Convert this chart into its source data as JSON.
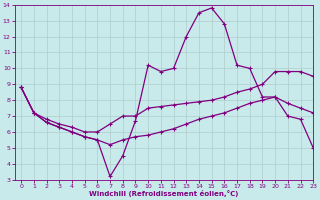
{
  "xlabel": "Windchill (Refroidissement éolien,°C)",
  "background_color": "#c8eaea",
  "line_color": "#800080",
  "grid_color": "#b0cccc",
  "xlim": [
    -0.5,
    23
  ],
  "ylim": [
    3,
    14
  ],
  "yticks": [
    3,
    4,
    5,
    6,
    7,
    8,
    9,
    10,
    11,
    12,
    13,
    14
  ],
  "xticks": [
    0,
    1,
    2,
    3,
    4,
    5,
    6,
    7,
    8,
    9,
    10,
    11,
    12,
    13,
    14,
    15,
    16,
    17,
    18,
    19,
    20,
    21,
    22,
    23
  ],
  "line1_x": [
    0,
    1,
    2,
    3,
    4,
    5,
    6,
    7,
    8,
    9,
    10,
    11,
    12,
    13,
    14,
    15,
    16,
    17,
    18,
    19,
    20,
    21,
    22,
    23
  ],
  "line1_y": [
    8.8,
    7.2,
    6.6,
    6.3,
    6.0,
    5.7,
    5.5,
    5.2,
    5.5,
    5.7,
    5.8,
    6.0,
    6.2,
    6.5,
    6.8,
    7.0,
    7.2,
    7.5,
    7.8,
    8.0,
    8.2,
    7.8,
    7.5,
    7.2
  ],
  "line2_x": [
    0,
    1,
    2,
    3,
    4,
    5,
    6,
    7,
    8,
    9,
    10,
    11,
    12,
    13,
    14,
    15,
    16,
    17,
    18,
    19,
    20,
    21,
    22,
    23
  ],
  "line2_y": [
    8.8,
    7.2,
    6.6,
    6.3,
    6.0,
    5.7,
    5.5,
    3.2,
    4.5,
    6.7,
    10.2,
    9.8,
    10.0,
    12.0,
    13.5,
    13.8,
    12.8,
    10.2,
    10.0,
    8.2,
    8.2,
    7.0,
    6.8,
    5.0
  ],
  "line3_x": [
    0,
    1,
    2,
    3,
    4,
    5,
    6,
    7,
    8,
    9,
    10,
    11,
    12,
    13,
    14,
    15,
    16,
    17,
    18,
    19,
    20,
    21,
    22,
    23
  ],
  "line3_y": [
    8.8,
    7.2,
    6.8,
    6.5,
    6.3,
    6.0,
    6.0,
    6.5,
    7.0,
    7.0,
    7.5,
    7.6,
    7.7,
    7.8,
    7.9,
    8.0,
    8.2,
    8.5,
    8.7,
    9.0,
    9.8,
    9.8,
    9.8,
    9.5
  ]
}
